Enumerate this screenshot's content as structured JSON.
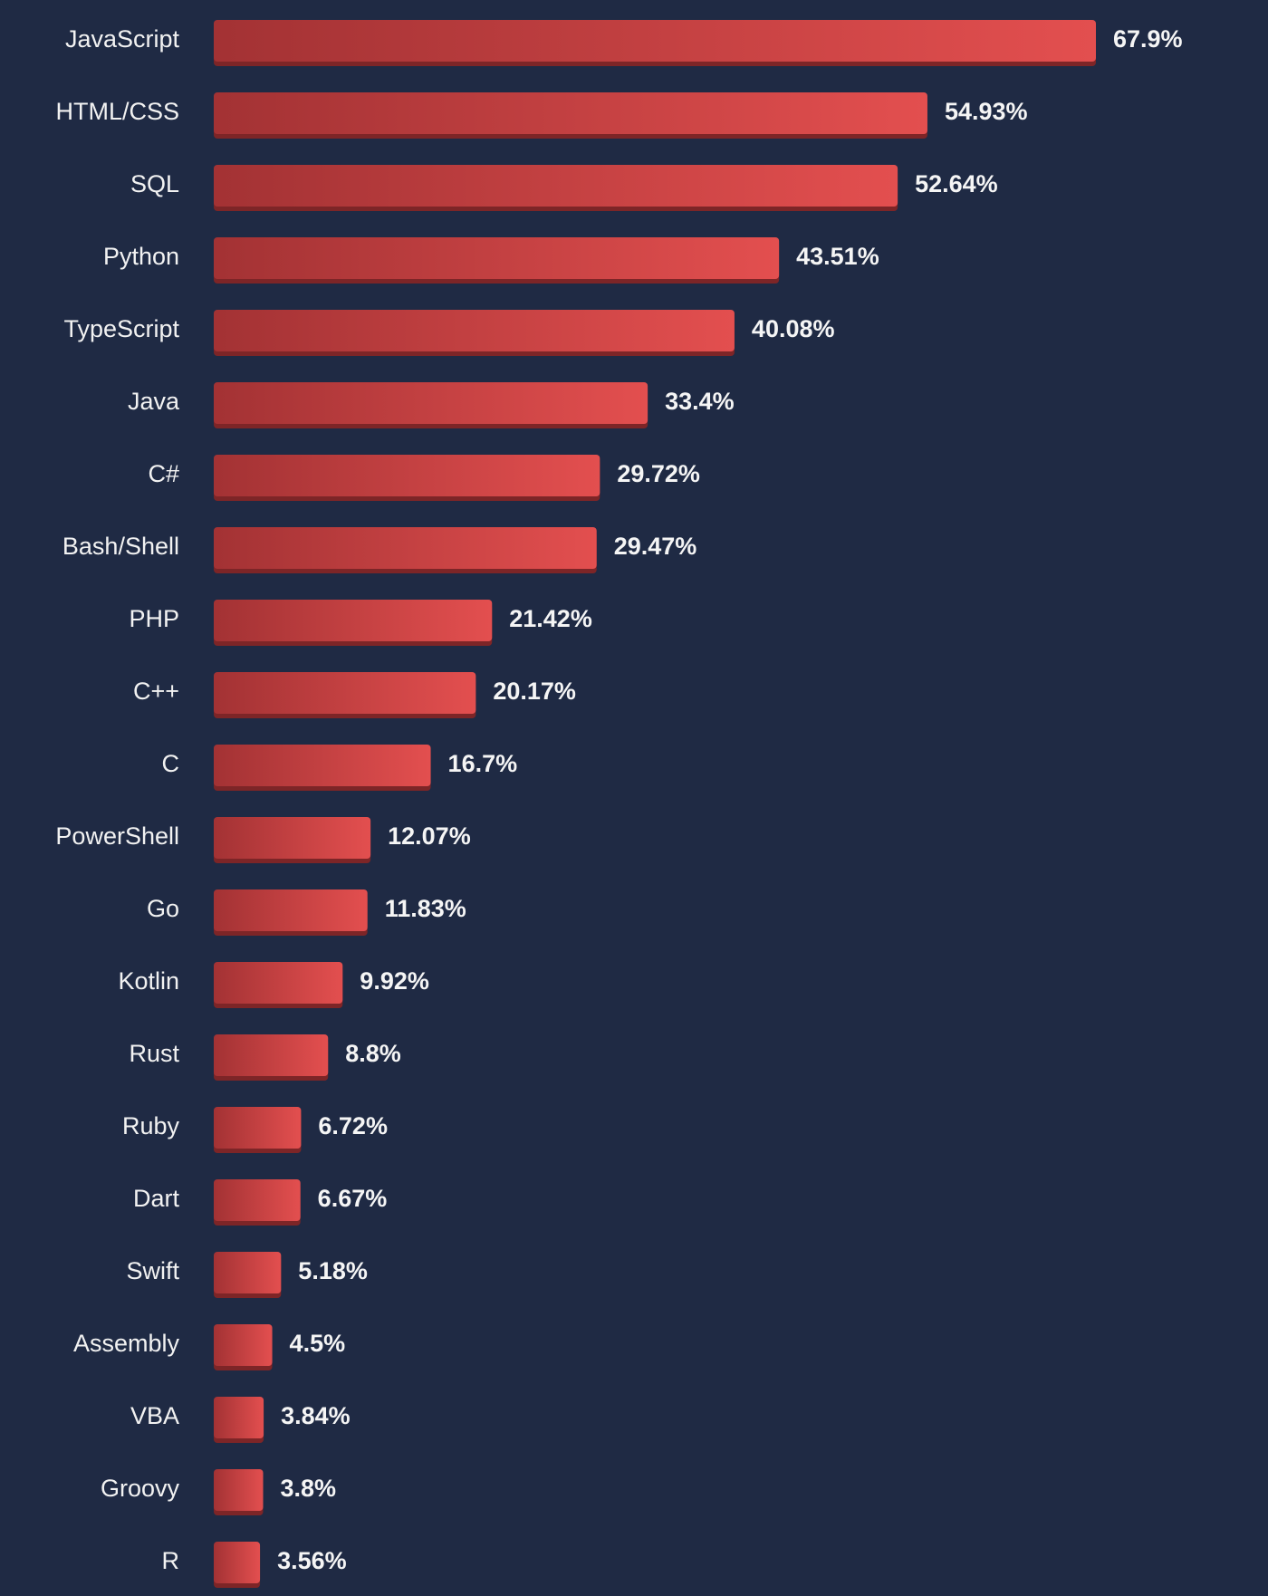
{
  "chart_data": {
    "type": "bar",
    "orientation": "horizontal",
    "categories": [
      "JavaScript",
      "HTML/CSS",
      "SQL",
      "Python",
      "TypeScript",
      "Java",
      "C#",
      "Bash/Shell",
      "PHP",
      "C++",
      "C",
      "PowerShell",
      "Go",
      "Kotlin",
      "Rust",
      "Ruby",
      "Dart",
      "Swift",
      "Assembly",
      "VBA",
      "Groovy",
      "R"
    ],
    "values": [
      67.9,
      54.93,
      52.64,
      43.51,
      40.08,
      33.4,
      29.72,
      29.47,
      21.42,
      20.17,
      16.7,
      12.07,
      11.83,
      9.92,
      8.8,
      6.72,
      6.67,
      5.18,
      4.5,
      3.84,
      3.8,
      3.56
    ],
    "value_labels": [
      "67.9%",
      "54.93%",
      "52.64%",
      "43.51%",
      "40.08%",
      "33.4%",
      "29.72%",
      "29.47%",
      "21.42%",
      "20.17%",
      "16.7%",
      "12.07%",
      "11.83%",
      "9.92%",
      "8.8%",
      "6.72%",
      "6.67%",
      "5.18%",
      "4.5%",
      "3.84%",
      "3.8%",
      "3.56%"
    ],
    "title": "",
    "xlabel": "",
    "ylabel": "",
    "unit": "%",
    "grid": false,
    "legend": "none"
  },
  "colors": {
    "background": "#1f2a44",
    "bar_start": "#a33234",
    "bar_end": "#e34f4f",
    "bar_shadow": "#7d2527",
    "category_text": "#f2f2f2",
    "value_text": "#f5f5f5"
  }
}
